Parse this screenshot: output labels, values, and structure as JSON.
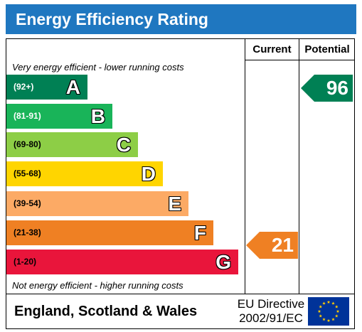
{
  "header": {
    "title": "Energy Efficiency Rating",
    "background": "#1f77c0"
  },
  "columns": {
    "current": "Current",
    "potential": "Potential"
  },
  "notes": {
    "top": "Very energy efficient - lower running costs",
    "bottom": "Not energy efficient - higher running costs"
  },
  "bands": [
    {
      "range": "(92+)",
      "letter": "A",
      "color": "#008054"
    },
    {
      "range": "(81-91)",
      "letter": "B",
      "color": "#19b459"
    },
    {
      "range": "(69-80)",
      "letter": "C",
      "color": "#8dce46"
    },
    {
      "range": "(55-68)",
      "letter": "D",
      "color": "#ffd500"
    },
    {
      "range": "(39-54)",
      "letter": "E",
      "color": "#fcaa65"
    },
    {
      "range": "(21-38)",
      "letter": "F",
      "color": "#ef8023"
    },
    {
      "range": "(1-20)",
      "letter": "G",
      "color": "#e9153b"
    }
  ],
  "ratings": {
    "current": {
      "value": "21",
      "color": "#ef8023"
    },
    "potential": {
      "value": "96",
      "color": "#008054"
    }
  },
  "footer": {
    "region": "England, Scotland & Wales",
    "directive_line1": "EU Directive",
    "directive_line2": "2002/91/EC",
    "flag_icon": "eu-flag-icon"
  }
}
